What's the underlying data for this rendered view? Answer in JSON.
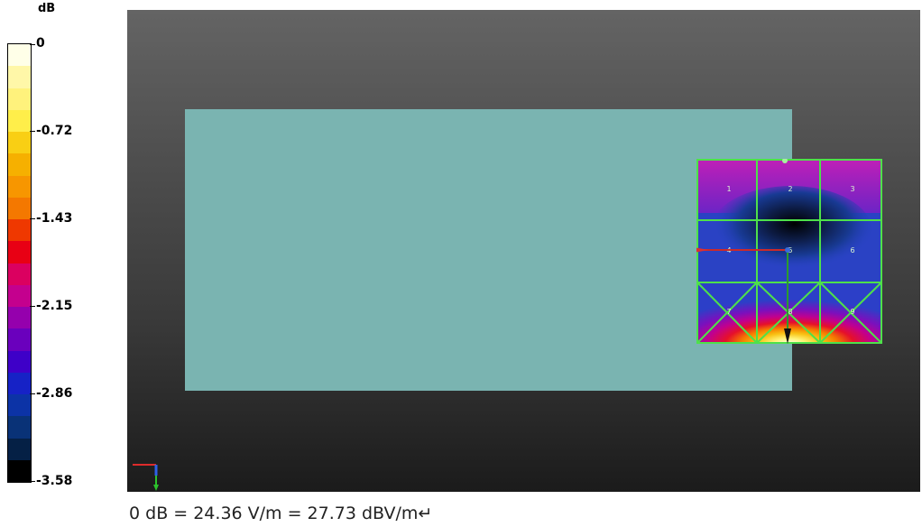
{
  "legend": {
    "unit": "dB",
    "ticks": [
      {
        "label": "0"
      },
      {
        "label": "-0.72"
      },
      {
        "label": "-1.43"
      },
      {
        "label": "-2.15"
      },
      {
        "label": "-2.86"
      },
      {
        "label": "-3.58"
      }
    ],
    "colors": [
      "#ffffe8",
      "#fff7a8",
      "#fff27c",
      "#ffee4a",
      "#f9cf14",
      "#f6b000",
      "#f79600",
      "#f47800",
      "#ef3800",
      "#e80014",
      "#db0060",
      "#c4008e",
      "#9500ad",
      "#6a00bd",
      "#3e00c8",
      "#1622c6",
      "#0c33a6",
      "#093277",
      "#052045",
      "#000000"
    ]
  },
  "caption": "0 dB = 24.36 V/m = 27.73 dBV/m↵",
  "scan_grid": {
    "cell_labels": [
      "1",
      "2",
      "3",
      "4",
      "5",
      "6",
      "7",
      "8",
      "9"
    ]
  }
}
